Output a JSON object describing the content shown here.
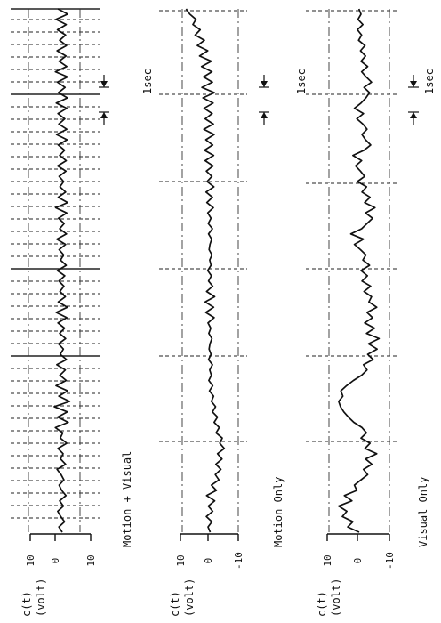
{
  "chart_data": [
    {
      "type": "line",
      "title": "Motion + Visual",
      "ylabel": "c(t) (volt)",
      "ylim": [
        -10,
        10
      ],
      "tick_labels": [
        "10",
        "0",
        "10"
      ],
      "time_scale_label": "1sec",
      "series": [
        {
          "values": [
            0,
            1.2,
            -0.8,
            0.5,
            1.6,
            -0.4,
            0.9,
            -1.3,
            0.2,
            1.1,
            -0.6,
            0.4,
            1.8,
            -1.2,
            0.6,
            -0.3,
            1.5,
            -1.6,
            0.7,
            -0.2,
            2.4,
            -2.1,
            1.6,
            -1.8,
            2.8,
            -2.6,
            1.2,
            -1.9,
            2.2,
            -1.4,
            0.8,
            -1.1,
            1.9,
            -1.5,
            0.7,
            -0.4,
            1.3,
            -1.2,
            0.9,
            -0.8,
            1.5,
            -1.6,
            2.1,
            -1.8,
            1.4,
            -1.1,
            0.8,
            -0.6,
            1.2,
            -0.9,
            1.7,
            -1.4,
            0.6,
            -0.5,
            1.1,
            -1.2,
            1.9,
            -1.5,
            0.9,
            -0.7,
            1.3,
            -1.6,
            2.3,
            -1.9,
            1.4,
            -1.2,
            0.8,
            -0.5,
            1.1,
            -1.3,
            1.6,
            -1.4,
            0.9,
            -0.8,
            1.4,
            -1.7,
            2.0,
            -1.6,
            1.2,
            -0.9,
            1.5,
            -1.6,
            2.1,
            -1.8,
            1.3,
            -1.0,
            1.7,
            -1.9,
            2.4,
            -1.6,
            1.1,
            -1.3,
            1.8,
            -1.5,
            0.9,
            -1.2,
            1.7,
            -1.4,
            2.2,
            -1.9,
            1.5
          ]
        }
      ]
    },
    {
      "type": "line",
      "title": "Motion Only",
      "ylabel": "c(t) (volt)",
      "ylim": [
        -10,
        10
      ],
      "tick_labels": [
        "10",
        "0",
        "-10"
      ],
      "time_scale_label": "1sec",
      "series": [
        {
          "values": [
            0,
            0.8,
            -0.6,
            1.4,
            -0.9,
            0.7,
            -1.6,
            1.3,
            -2.2,
            -0.4,
            -3.1,
            -1.8,
            -3.8,
            -2.0,
            -4.2,
            -2.6,
            -5.0,
            -3.4,
            -4.3,
            -2.1,
            -3.2,
            -1.4,
            -2.6,
            -0.8,
            -1.9,
            -0.4,
            -1.2,
            0.3,
            -0.9,
            0.5,
            -0.4,
            0.2,
            -0.8,
            0.6,
            -0.3,
            0.4,
            0.1,
            -0.6,
            0.5,
            -0.2,
            0.8,
            -1.4,
            1.6,
            -1.2,
            1.8,
            -1.6,
            1.3,
            -0.9,
            0.6,
            -0.4,
            0.9,
            -0.3,
            0.2,
            -0.6,
            0.4,
            0.1,
            -0.5,
            0.6,
            -0.8,
            0.7,
            -0.3,
            0.9,
            -1.1,
            1.2,
            -0.8,
            1.5,
            -1.3,
            1.1,
            -0.6,
            1.4,
            -1.0,
            1.8,
            -1.2,
            2.1,
            -0.9,
            1.6,
            -1.4,
            2.3,
            -1.1,
            1.8,
            -0.7,
            2.2,
            -1.0,
            2.6,
            -1.5,
            3.0,
            -0.8,
            2.4,
            -0.6,
            3.1,
            -0.4,
            3.8,
            0.9,
            4.6,
            2.1,
            5.4,
            3.6,
            6.2,
            5.1,
            7.3,
            8.6
          ]
        }
      ]
    },
    {
      "type": "line",
      "title": "Visual Only",
      "ylabel": "c(t) (volt)",
      "ylim": [
        -10,
        10
      ],
      "tick_labels": [
        "10",
        "0",
        "-10"
      ],
      "time_scale_label": "1sec",
      "series": [
        {
          "values": [
            0,
            3.8,
            2.1,
            5.6,
            4.1,
            6.8,
            2.4,
            4.9,
            0.8,
            1.6,
            -0.6,
            -2.8,
            -1.4,
            -4.2,
            -2.1,
            -5.8,
            -1.9,
            -3.6,
            -0.6,
            -2.4,
            -0.9,
            1.8,
            3.6,
            5.1,
            6.2,
            6.8,
            5.4,
            6.1,
            4.2,
            1.9,
            -0.8,
            -2.6,
            -1.4,
            -4.6,
            -2.8,
            -5.9,
            -3.1,
            -6.6,
            -2.4,
            -5.1,
            -1.8,
            -4.4,
            -2.6,
            -5.8,
            -3.2,
            -4.1,
            -1.6,
            -3.8,
            -0.9,
            -2.7,
            -0.6,
            -3.4,
            -1.2,
            -2.2,
            -0.4,
            1.6,
            -1.4,
            2.8,
            -0.8,
            -2.6,
            -4.4,
            -2.1,
            -5.2,
            -1.8,
            -3.6,
            -0.9,
            -2.4,
            0.6,
            -1.8,
            -0.4,
            1.2,
            -0.8,
            2.1,
            -1.6,
            -3.8,
            -2.1,
            -0.9,
            -2.6,
            -1.2,
            0.8,
            -1.4,
            1.6,
            -0.6,
            -2.2,
            -3.4,
            -1.6,
            -4.1,
            -2.3,
            -0.8,
            -2.8,
            -0.6,
            -2.1,
            -0.4,
            -1.9,
            0.2,
            -0.8,
            0.6,
            -1.2,
            0.4,
            -0.6,
            0.1
          ]
        }
      ]
    }
  ]
}
